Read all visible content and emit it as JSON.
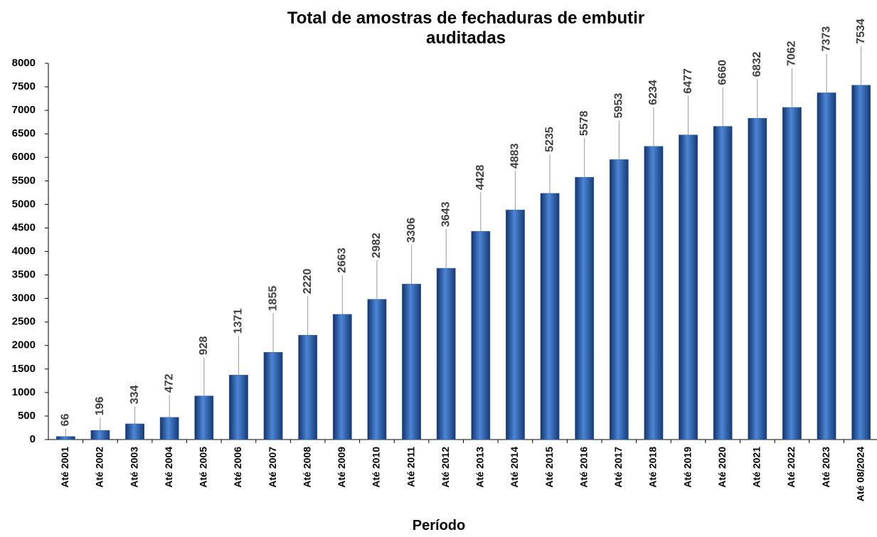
{
  "chart_data": {
    "type": "bar",
    "title": "Total de amostras de fechaduras de embutir auditadas",
    "x_label": "Período",
    "categories": [
      "Até 2001",
      "Até 2002",
      "Até 2003",
      "Até 2004",
      "Até 2005",
      "Até 2006",
      "Até 2007",
      "Até 2008",
      "Até 2009",
      "Até 2010",
      "Até 2011",
      "Até 2012",
      "Até 2013",
      "Até 2014",
      "Até 2015",
      "Até 2016",
      "Até 2017",
      "Até 2018",
      "Até 2019",
      "Até 2020",
      "Até 2021",
      "Até 2022",
      "Até 2023",
      "Até 08/2024"
    ],
    "values": [
      66,
      196,
      334,
      472,
      928,
      1371,
      1855,
      2220,
      2663,
      2982,
      3306,
      3643,
      4428,
      4883,
      5235,
      5578,
      5953,
      6234,
      6477,
      6660,
      6832,
      7062,
      7373,
      7534
    ],
    "color": "#2f62b0",
    "ylim": [
      0,
      8000
    ],
    "yticks": [
      0,
      500,
      1000,
      1500,
      2000,
      2500,
      3000,
      3500,
      4000,
      4500,
      5000,
      5500,
      6000,
      6500,
      7000,
      7500,
      8000
    ],
    "grid": false
  }
}
